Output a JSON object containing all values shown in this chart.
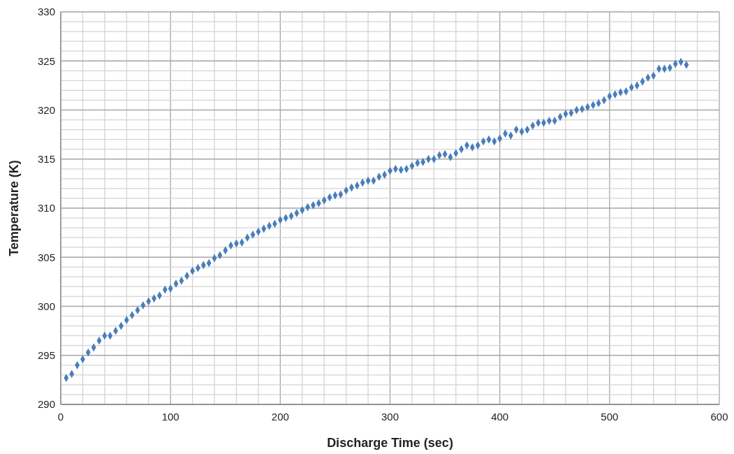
{
  "chart_data": {
    "type": "scatter",
    "xlabel": "Discharge Time (sec)",
    "ylabel": "Temperature (K)",
    "marker": "diamond",
    "grid": true,
    "xlim": [
      0,
      600
    ],
    "ylim": [
      290,
      330
    ],
    "xticks": [
      0,
      {
        "value": 20,
        "label": null
      },
      {
        "value": 40,
        "label": null
      },
      {
        "value": 60,
        "label": null
      },
      {
        "value": 80,
        "label": null
      },
      100,
      {
        "value": 120,
        "label": null
      },
      {
        "value": 140,
        "label": null
      },
      {
        "value": 160,
        "label": null
      },
      {
        "value": 180,
        "label": null
      },
      200,
      {
        "value": 220,
        "label": null
      },
      {
        "value": 240,
        "label": null
      },
      {
        "value": 260,
        "label": null
      },
      {
        "value": 280,
        "label": null
      },
      300,
      {
        "value": 320,
        "label": null
      },
      {
        "value": 340,
        "label": null
      },
      {
        "value": 360,
        "label": null
      },
      {
        "value": 380,
        "label": null
      },
      400,
      {
        "value": 420,
        "label": null
      },
      {
        "value": 440,
        "label": null
      },
      {
        "value": 460,
        "label": null
      },
      {
        "value": 480,
        "label": null
      },
      500,
      {
        "value": 520,
        "label": null
      },
      {
        "value": 540,
        "label": null
      },
      {
        "value": 560,
        "label": null
      },
      {
        "value": 580,
        "label": null
      },
      600
    ],
    "yticks": [
      290,
      {
        "value": 291,
        "label": null
      },
      {
        "value": 292,
        "label": null
      },
      {
        "value": 293,
        "label": null
      },
      {
        "value": 294,
        "label": null
      },
      295,
      {
        "value": 296,
        "label": null
      },
      {
        "value": 297,
        "label": null
      },
      {
        "value": 298,
        "label": null
      },
      {
        "value": 299,
        "label": null
      },
      300,
      {
        "value": 301,
        "label": null
      },
      {
        "value": 302,
        "label": null
      },
      {
        "value": 303,
        "label": null
      },
      {
        "value": 304,
        "label": null
      },
      305,
      {
        "value": 306,
        "label": null
      },
      {
        "value": 307,
        "label": null
      },
      {
        "value": 308,
        "label": null
      },
      {
        "value": 309,
        "label": null
      },
      310,
      {
        "value": 311,
        "label": null
      },
      {
        "value": 312,
        "label": null
      },
      {
        "value": 313,
        "label": null
      },
      {
        "value": 314,
        "label": null
      },
      315,
      {
        "value": 316,
        "label": null
      },
      {
        "value": 317,
        "label": null
      },
      {
        "value": 318,
        "label": null
      },
      {
        "value": 319,
        "label": null
      },
      320,
      {
        "value": 321,
        "label": null
      },
      {
        "value": 322,
        "label": null
      },
      {
        "value": 323,
        "label": null
      },
      {
        "value": 324,
        "label": null
      },
      325,
      {
        "value": 326,
        "label": null
      },
      {
        "value": 327,
        "label": null
      },
      {
        "value": 328,
        "label": null
      },
      {
        "value": 329,
        "label": null
      },
      330
    ],
    "series": [
      {
        "color": "#4a7ebb",
        "x": [
          5,
          10,
          15,
          20,
          25,
          30,
          35,
          40,
          45,
          50,
          55,
          60,
          65,
          70,
          75,
          80,
          85,
          90,
          95,
          100,
          105,
          110,
          115,
          120,
          125,
          130,
          135,
          140,
          145,
          150,
          155,
          160,
          165,
          170,
          175,
          180,
          185,
          190,
          195,
          200,
          205,
          210,
          215,
          220,
          225,
          230,
          235,
          240,
          245,
          250,
          255,
          260,
          265,
          270,
          275,
          280,
          285,
          290,
          295,
          300,
          305,
          310,
          315,
          320,
          325,
          330,
          335,
          340,
          345,
          350,
          355,
          360,
          365,
          370,
          375,
          380,
          385,
          390,
          395,
          400,
          405,
          410,
          415,
          420,
          425,
          430,
          435,
          440,
          445,
          450,
          455,
          460,
          465,
          470,
          475,
          480,
          485,
          490,
          495,
          500,
          505,
          510,
          515,
          520,
          525,
          530,
          535,
          540,
          545,
          550,
          555,
          560,
          565,
          570
        ],
        "values": [
          292.7,
          293.1,
          294.0,
          294.6,
          295.3,
          295.8,
          296.5,
          297.0,
          297.0,
          297.5,
          298.0,
          298.6,
          299.1,
          299.6,
          300.1,
          300.5,
          300.8,
          301.1,
          301.7,
          301.8,
          302.3,
          302.6,
          303.1,
          303.6,
          303.9,
          304.2,
          304.4,
          304.9,
          305.2,
          305.7,
          306.2,
          306.4,
          306.5,
          307.0,
          307.3,
          307.6,
          307.9,
          308.2,
          308.4,
          308.8,
          309.0,
          309.2,
          309.5,
          309.8,
          310.1,
          310.3,
          310.5,
          310.8,
          311.1,
          311.3,
          311.4,
          311.8,
          312.1,
          312.3,
          312.6,
          312.8,
          312.8,
          313.2,
          313.4,
          313.8,
          314.0,
          313.9,
          314.0,
          314.3,
          314.6,
          314.7,
          315.0,
          315.0,
          315.4,
          315.5,
          315.2,
          315.6,
          316.0,
          316.4,
          316.2,
          316.4,
          316.8,
          317.0,
          316.8,
          317.1,
          317.6,
          317.4,
          318.0,
          317.8,
          318.0,
          318.4,
          318.7,
          318.7,
          318.9,
          318.9,
          319.3,
          319.6,
          319.7,
          320.0,
          320.1,
          320.3,
          320.5,
          320.7,
          321.0,
          321.4,
          321.6,
          321.8,
          321.9,
          322.3,
          322.5,
          322.9,
          323.3,
          323.5,
          324.2,
          324.2,
          324.3,
          324.7,
          324.9,
          324.6
        ]
      }
    ]
  }
}
